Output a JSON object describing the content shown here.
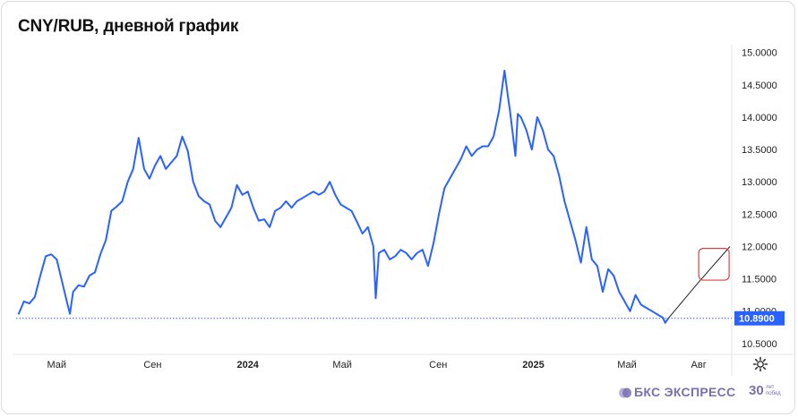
{
  "title": "CNY/RUB, дневной график",
  "branding": {
    "name": "БКС ЭКСПРЕСС",
    "anniversary": "30",
    "anniversary_sub": "лет побед"
  },
  "current_price_label": "10.8900",
  "colors": {
    "line": "#2962ff",
    "price_badge": "#2962ff",
    "forecast_box": "#d64545",
    "forecast_line": "#222222",
    "brand": "#7a6fb0"
  },
  "settings_icon": "gear-icon",
  "chart_data": {
    "type": "line",
    "title": "CNY/RUB, дневной график",
    "xlabel": "",
    "ylabel": "",
    "ylim": [
      10.36,
      15.12
    ],
    "y_ticks": [
      "15.0000",
      "14.5000",
      "14.0000",
      "13.5000",
      "13.0000",
      "12.5000",
      "12.0000",
      "11.5000",
      "11.0000",
      "10.5000"
    ],
    "y_tick_values": [
      15.0,
      14.5,
      14.0,
      13.5,
      13.0,
      12.5,
      12.0,
      11.5,
      11.0,
      10.5
    ],
    "x_ticks": [
      {
        "label": "Май",
        "x": "2023-05-01",
        "bold": false
      },
      {
        "label": "Сен",
        "x": "2023-09-01",
        "bold": false
      },
      {
        "label": "2024",
        "x": "2024-01-01",
        "bold": true
      },
      {
        "label": "Май",
        "x": "2024-05-01",
        "bold": false
      },
      {
        "label": "Сен",
        "x": "2024-09-01",
        "bold": false
      },
      {
        "label": "2025",
        "x": "2025-01-01",
        "bold": true
      },
      {
        "label": "Май",
        "x": "2025-05-01",
        "bold": false
      },
      {
        "label": "Авг",
        "x": "2025-08-01",
        "bold": false
      }
    ],
    "x_start": "2023-03-10",
    "x_end": "2025-09-10",
    "current_price": 10.89,
    "grid": false,
    "series": [
      {
        "values": [
          [
            "2023-03-13",
            10.95
          ],
          [
            "2023-03-20",
            11.15
          ],
          [
            "2023-03-27",
            11.12
          ],
          [
            "2023-04-03",
            11.22
          ],
          [
            "2023-04-10",
            11.55
          ],
          [
            "2023-04-17",
            11.85
          ],
          [
            "2023-04-24",
            11.88
          ],
          [
            "2023-05-01",
            11.8
          ],
          [
            "2023-05-08",
            11.45
          ],
          [
            "2023-05-15",
            11.1
          ],
          [
            "2023-05-18",
            10.96
          ],
          [
            "2023-05-22",
            11.3
          ],
          [
            "2023-05-29",
            11.4
          ],
          [
            "2023-06-05",
            11.38
          ],
          [
            "2023-06-12",
            11.55
          ],
          [
            "2023-06-19",
            11.6
          ],
          [
            "2023-06-26",
            11.88
          ],
          [
            "2023-07-03",
            12.1
          ],
          [
            "2023-07-10",
            12.55
          ],
          [
            "2023-07-17",
            12.62
          ],
          [
            "2023-07-24",
            12.7
          ],
          [
            "2023-07-31",
            13.0
          ],
          [
            "2023-08-07",
            13.2
          ],
          [
            "2023-08-14",
            13.68
          ],
          [
            "2023-08-21",
            13.2
          ],
          [
            "2023-08-28",
            13.05
          ],
          [
            "2023-09-04",
            13.25
          ],
          [
            "2023-09-11",
            13.4
          ],
          [
            "2023-09-18",
            13.2
          ],
          [
            "2023-09-25",
            13.3
          ],
          [
            "2023-10-02",
            13.4
          ],
          [
            "2023-10-09",
            13.7
          ],
          [
            "2023-10-16",
            13.48
          ],
          [
            "2023-10-23",
            13.0
          ],
          [
            "2023-10-30",
            12.78
          ],
          [
            "2023-11-06",
            12.7
          ],
          [
            "2023-11-13",
            12.65
          ],
          [
            "2023-11-20",
            12.4
          ],
          [
            "2023-11-27",
            12.3
          ],
          [
            "2023-12-04",
            12.45
          ],
          [
            "2023-12-11",
            12.6
          ],
          [
            "2023-12-18",
            12.95
          ],
          [
            "2023-12-25",
            12.8
          ],
          [
            "2024-01-01",
            12.85
          ],
          [
            "2024-01-08",
            12.6
          ],
          [
            "2024-01-15",
            12.4
          ],
          [
            "2024-01-22",
            12.42
          ],
          [
            "2024-01-29",
            12.3
          ],
          [
            "2024-02-05",
            12.55
          ],
          [
            "2024-02-12",
            12.6
          ],
          [
            "2024-02-19",
            12.7
          ],
          [
            "2024-02-26",
            12.6
          ],
          [
            "2024-03-04",
            12.7
          ],
          [
            "2024-03-11",
            12.75
          ],
          [
            "2024-03-18",
            12.8
          ],
          [
            "2024-03-25",
            12.85
          ],
          [
            "2024-04-01",
            12.8
          ],
          [
            "2024-04-08",
            12.85
          ],
          [
            "2024-04-15",
            13.0
          ],
          [
            "2024-04-22",
            12.8
          ],
          [
            "2024-04-29",
            12.65
          ],
          [
            "2024-05-06",
            12.6
          ],
          [
            "2024-05-13",
            12.55
          ],
          [
            "2024-05-20",
            12.38
          ],
          [
            "2024-05-27",
            12.2
          ],
          [
            "2024-06-03",
            12.3
          ],
          [
            "2024-06-10",
            12.0
          ],
          [
            "2024-06-13",
            11.2
          ],
          [
            "2024-06-17",
            11.9
          ],
          [
            "2024-06-24",
            11.95
          ],
          [
            "2024-07-01",
            11.8
          ],
          [
            "2024-07-08",
            11.85
          ],
          [
            "2024-07-15",
            11.95
          ],
          [
            "2024-07-22",
            11.9
          ],
          [
            "2024-07-29",
            11.8
          ],
          [
            "2024-08-05",
            11.9
          ],
          [
            "2024-08-12",
            11.95
          ],
          [
            "2024-08-19",
            11.7
          ],
          [
            "2024-08-26",
            12.05
          ],
          [
            "2024-09-02",
            12.5
          ],
          [
            "2024-09-09",
            12.9
          ],
          [
            "2024-09-16",
            13.05
          ],
          [
            "2024-09-23",
            13.2
          ],
          [
            "2024-09-30",
            13.35
          ],
          [
            "2024-10-07",
            13.55
          ],
          [
            "2024-10-14",
            13.4
          ],
          [
            "2024-10-21",
            13.5
          ],
          [
            "2024-10-28",
            13.55
          ],
          [
            "2024-11-04",
            13.55
          ],
          [
            "2024-11-11",
            13.7
          ],
          [
            "2024-11-18",
            14.1
          ],
          [
            "2024-11-25",
            14.72
          ],
          [
            "2024-11-29",
            14.35
          ],
          [
            "2024-12-02",
            14.1
          ],
          [
            "2024-12-09",
            13.4
          ],
          [
            "2024-12-12",
            14.05
          ],
          [
            "2024-12-16",
            14.0
          ],
          [
            "2024-12-23",
            13.8
          ],
          [
            "2024-12-30",
            13.5
          ],
          [
            "2025-01-06",
            14.0
          ],
          [
            "2025-01-13",
            13.8
          ],
          [
            "2025-01-20",
            13.5
          ],
          [
            "2025-01-27",
            13.4
          ],
          [
            "2025-02-03",
            13.1
          ],
          [
            "2025-02-10",
            12.7
          ],
          [
            "2025-02-17",
            12.4
          ],
          [
            "2025-02-24",
            12.1
          ],
          [
            "2025-03-03",
            11.75
          ],
          [
            "2025-03-10",
            12.3
          ],
          [
            "2025-03-17",
            11.8
          ],
          [
            "2025-03-24",
            11.7
          ],
          [
            "2025-03-31",
            11.3
          ],
          [
            "2025-04-07",
            11.65
          ],
          [
            "2025-04-14",
            11.55
          ],
          [
            "2025-04-21",
            11.3
          ],
          [
            "2025-04-28",
            11.15
          ],
          [
            "2025-05-05",
            11.0
          ],
          [
            "2025-05-12",
            11.25
          ],
          [
            "2025-05-19",
            11.1
          ],
          [
            "2025-05-26",
            11.05
          ],
          [
            "2025-06-02",
            11.0
          ],
          [
            "2025-06-09",
            10.95
          ],
          [
            "2025-06-16",
            10.9
          ],
          [
            "2025-06-19",
            10.82
          ],
          [
            "2025-06-23",
            10.89
          ]
        ]
      }
    ],
    "forecast_line": [
      [
        "2025-06-23",
        10.89
      ],
      [
        "2025-08-01",
        11.45
      ],
      [
        "2025-09-10",
        12.0
      ]
    ],
    "forecast_box": {
      "x_from": "2025-08-01",
      "x_to": "2025-09-09",
      "y_from": 11.48,
      "y_to": 11.97
    }
  }
}
